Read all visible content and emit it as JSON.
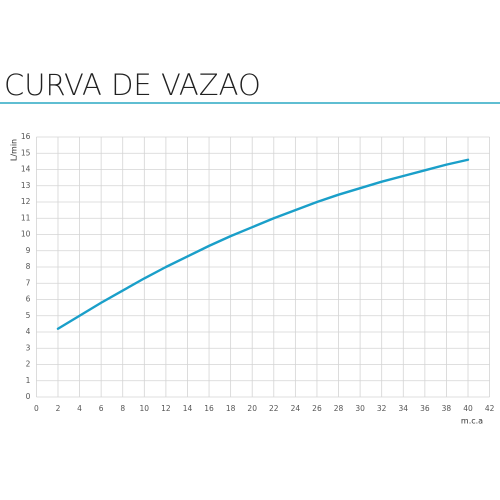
{
  "chart_data": {
    "type": "line",
    "title": "CURVA DE VAZAO",
    "x_label": "m.c.a",
    "y_label": "L/min",
    "x": [
      2,
      4,
      6,
      8,
      10,
      12,
      14,
      16,
      18,
      20,
      22,
      24,
      26,
      28,
      30,
      32,
      34,
      36,
      38,
      40
    ],
    "series": [
      {
        "color": "#1a9fc9",
        "values": [
          4.2,
          5.0,
          5.8,
          6.55,
          7.3,
          8.0,
          8.65,
          9.3,
          9.9,
          10.45,
          11.0,
          11.5,
          12.0,
          12.45,
          12.85,
          13.25,
          13.6,
          13.95,
          14.3,
          14.6
        ]
      }
    ],
    "xlim": [
      0,
      42
    ],
    "xticks": [
      0,
      2,
      4,
      6,
      8,
      10,
      12,
      14,
      16,
      18,
      20,
      22,
      24,
      26,
      28,
      30,
      32,
      34,
      36,
      38,
      40,
      42
    ],
    "ylim": [
      0,
      16
    ],
    "yticks": [
      0,
      1,
      2,
      3,
      4,
      5,
      6,
      7,
      8,
      9,
      10,
      11,
      12,
      13,
      14,
      15,
      16
    ],
    "grid": true
  }
}
